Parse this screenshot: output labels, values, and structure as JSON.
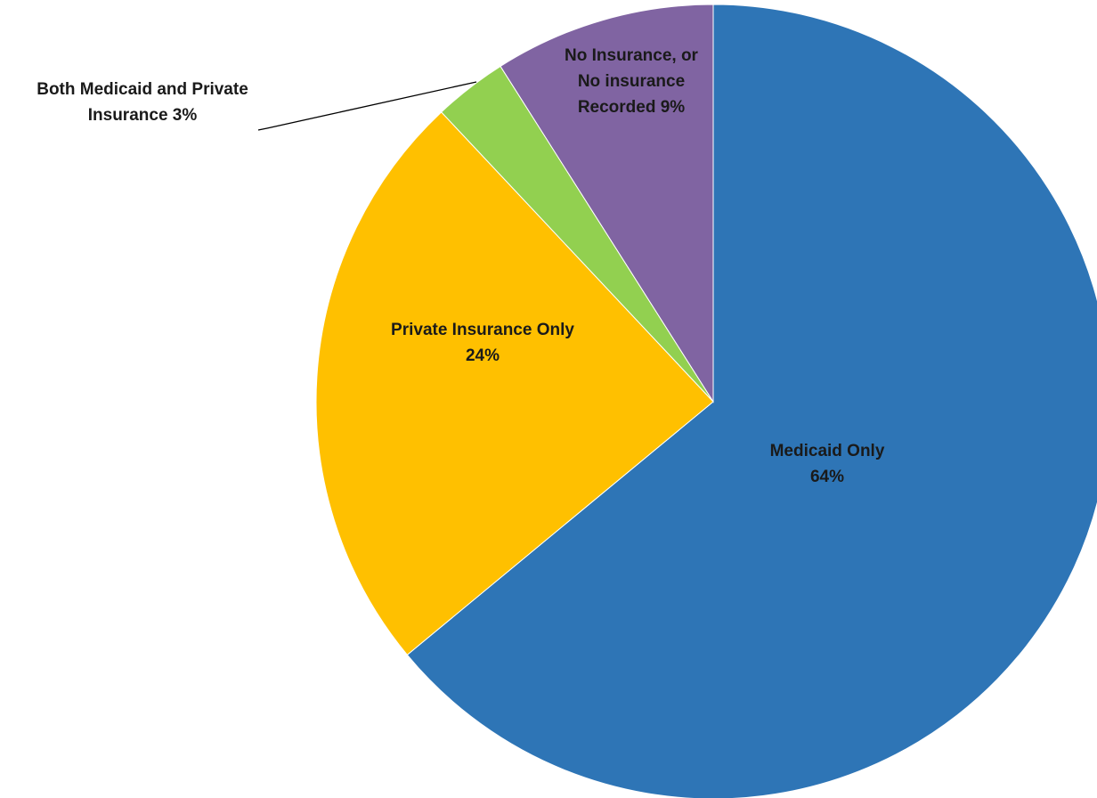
{
  "chart_data": {
    "type": "pie",
    "title": "",
    "slices": [
      {
        "name": "Medicaid Only",
        "value": 64,
        "value_label": "64%",
        "label_lines": [
          "Medicaid Only",
          "64%"
        ],
        "color": "#2E75B6"
      },
      {
        "name": "Private Insurance Only",
        "value": 24,
        "value_label": "24%",
        "label_lines": [
          "Private Insurance Only",
          "24%"
        ],
        "color": "#FFC000"
      },
      {
        "name": "Both Medicaid and Private Insurance",
        "value": 3,
        "value_label": "3%",
        "label_lines": [
          "Both Medicaid and Private",
          "Insurance 3%"
        ],
        "color": "#92D050"
      },
      {
        "name": "No Insurance, or No insurance Recorded",
        "value": 9,
        "value_label": "9%",
        "label_lines": [
          "No Insurance, or",
          "No insurance",
          "Recorded 9%"
        ],
        "color": "#8064A2"
      }
    ],
    "start_angle": "12 o'clock",
    "direction": "clockwise",
    "legend": "none",
    "label_style": "bold dark text, inside slices except smallest which uses a leader line"
  }
}
